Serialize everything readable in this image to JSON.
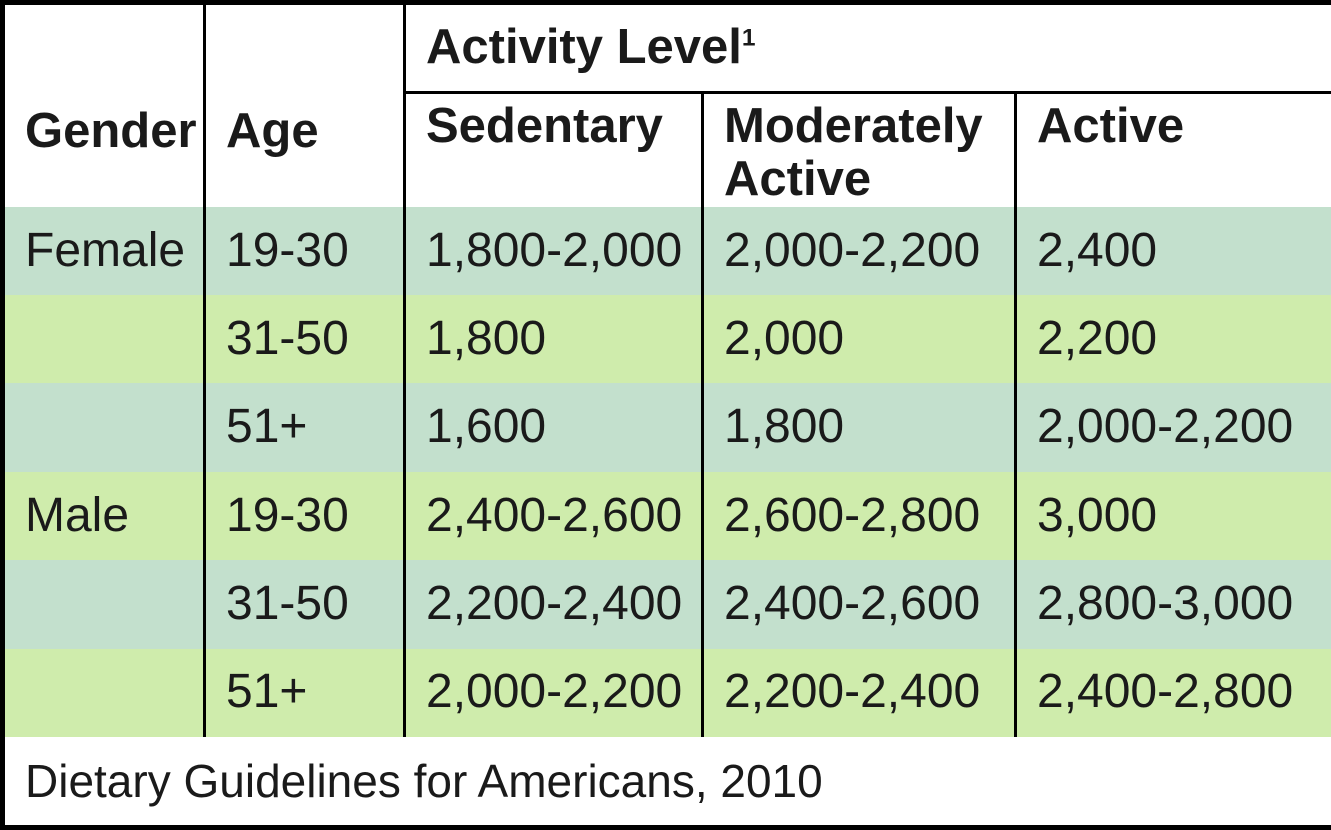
{
  "table": {
    "header": {
      "gender": "Gender",
      "age": "Age",
      "activity_level": "Activity Level",
      "activity_level_sup": "1",
      "sub": [
        "Sedentary",
        "Moderately Active",
        "Active"
      ]
    },
    "rows": [
      {
        "gender": "Female",
        "age": "19-30",
        "sedentary": "1,800-2,000",
        "moderately_active": "2,000-2,200",
        "active": "2,400"
      },
      {
        "gender": "",
        "age": "31-50",
        "sedentary": "1,800",
        "moderately_active": "2,000",
        "active": "2,200"
      },
      {
        "gender": "",
        "age": "51+",
        "sedentary": "1,600",
        "moderately_active": "1,800",
        "active": "2,000-2,200"
      },
      {
        "gender": "Male",
        "age": "19-30",
        "sedentary": "2,400-2,600",
        "moderately_active": "2,600-2,800",
        "active": "3,000"
      },
      {
        "gender": "",
        "age": "31-50",
        "sedentary": "2,200-2,400",
        "moderately_active": "2,400-2,600",
        "active": "2,800-3,000"
      },
      {
        "gender": "",
        "age": "51+",
        "sedentary": "2,000-2,200",
        "moderately_active": "2,200-2,400",
        "active": "2,400-2,800"
      }
    ],
    "footer": "Dietary Guidelines for Americans, 2010",
    "colors": {
      "row_teal": "#c3e0cd",
      "row_green": "#cfecac",
      "border": "#000000",
      "header_bg": "#ffffff",
      "text": "#1a1a1a"
    }
  },
  "chart_data": {
    "type": "table",
    "title": "Activity Level",
    "title_footnote_marker": "1",
    "columns": [
      "Gender",
      "Age",
      "Sedentary",
      "Moderately Active",
      "Active"
    ],
    "rows": [
      [
        "Female",
        "19-30",
        "1,800-2,000",
        "2,000-2,200",
        "2,400"
      ],
      [
        "",
        "31-50",
        "1,800",
        "2,000",
        "2,200"
      ],
      [
        "",
        "51+",
        "1,600",
        "1,800",
        "2,000-2,200"
      ],
      [
        "Male",
        "19-30",
        "2,400-2,600",
        "2,600-2,800",
        "3,000"
      ],
      [
        "",
        "31-50",
        "2,200-2,400",
        "2,400-2,600",
        "2,800-3,000"
      ],
      [
        "",
        "51+",
        "2,000-2,200",
        "2,200-2,400",
        "2,400-2,800"
      ]
    ],
    "source_note": "Dietary Guidelines for Americans, 2010",
    "layout_hints": {
      "alternating_row_colors": [
        "#c3e0cd",
        "#cfecac"
      ],
      "header_background": "#ffffff",
      "grid": "vertical-rules-only"
    }
  }
}
